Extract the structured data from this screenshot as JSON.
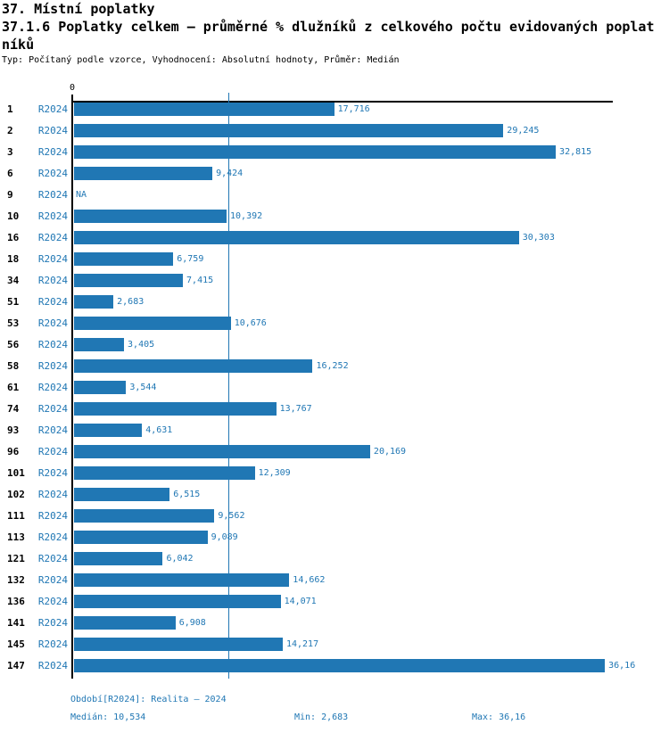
{
  "header": {
    "title_lines": [
      "37. Místní poplatky",
      "37.1.6 Poplatky celkem – průměrné % dlužníků z celkového počtu evidovaných poplat",
      "níků"
    ],
    "meta": "Typ: Počítaný podle vzorce, Vyhodnocení: Absolutní hodnoty, Průměr: Medián"
  },
  "chart_data": {
    "type": "bar",
    "orientation": "horizontal",
    "title": "37. Místní poplatky",
    "subtitle": "37.1.6 Poplatky celkem – průměrné % dlužníků z celkového počtu evidovaných poplatníků",
    "meta": "Typ: Počítaný podle vzorce, Vyhodnocení: Absolutní hodnoty, Průměr: Medián",
    "series_label": "R2024",
    "axis_zero_label": "0",
    "na_label": "NA",
    "grid": false,
    "legend_position": "none",
    "xlim": [
      0,
      36.7
    ],
    "median_value": 10.534,
    "bar_color": "#2077b4",
    "text_color": "#2077b4",
    "categories": [
      "1",
      "2",
      "3",
      "6",
      "9",
      "10",
      "16",
      "18",
      "34",
      "51",
      "53",
      "56",
      "58",
      "61",
      "74",
      "93",
      "96",
      "101",
      "102",
      "111",
      "113",
      "121",
      "132",
      "136",
      "141",
      "145",
      "147"
    ],
    "values": [
      17.716,
      29.245,
      32.815,
      9.424,
      null,
      10.392,
      30.303,
      6.759,
      7.415,
      2.683,
      10.676,
      3.405,
      16.252,
      3.544,
      13.767,
      4.631,
      20.169,
      12.309,
      6.515,
      9.562,
      9.089,
      6.042,
      14.662,
      14.071,
      6.908,
      14.217,
      36.16
    ],
    "value_labels": [
      "17,716",
      "29,245",
      "32,815",
      "9,424",
      "NA",
      "10,392",
      "30,303",
      "6,759",
      "7,415",
      "2,683",
      "10,676",
      "3,405",
      "16,252",
      "3,544",
      "13,767",
      "4,631",
      "20,169",
      "12,309",
      "6,515",
      "9,562",
      "9,089",
      "6,042",
      "14,662",
      "14,071",
      "6,908",
      "14,217",
      "36,16"
    ]
  },
  "footer": {
    "period": "Období[R2024]: Realita – 2024",
    "median": "Medián: 10,534",
    "min": "Min: 2,683",
    "max": "Max: 36,16"
  }
}
